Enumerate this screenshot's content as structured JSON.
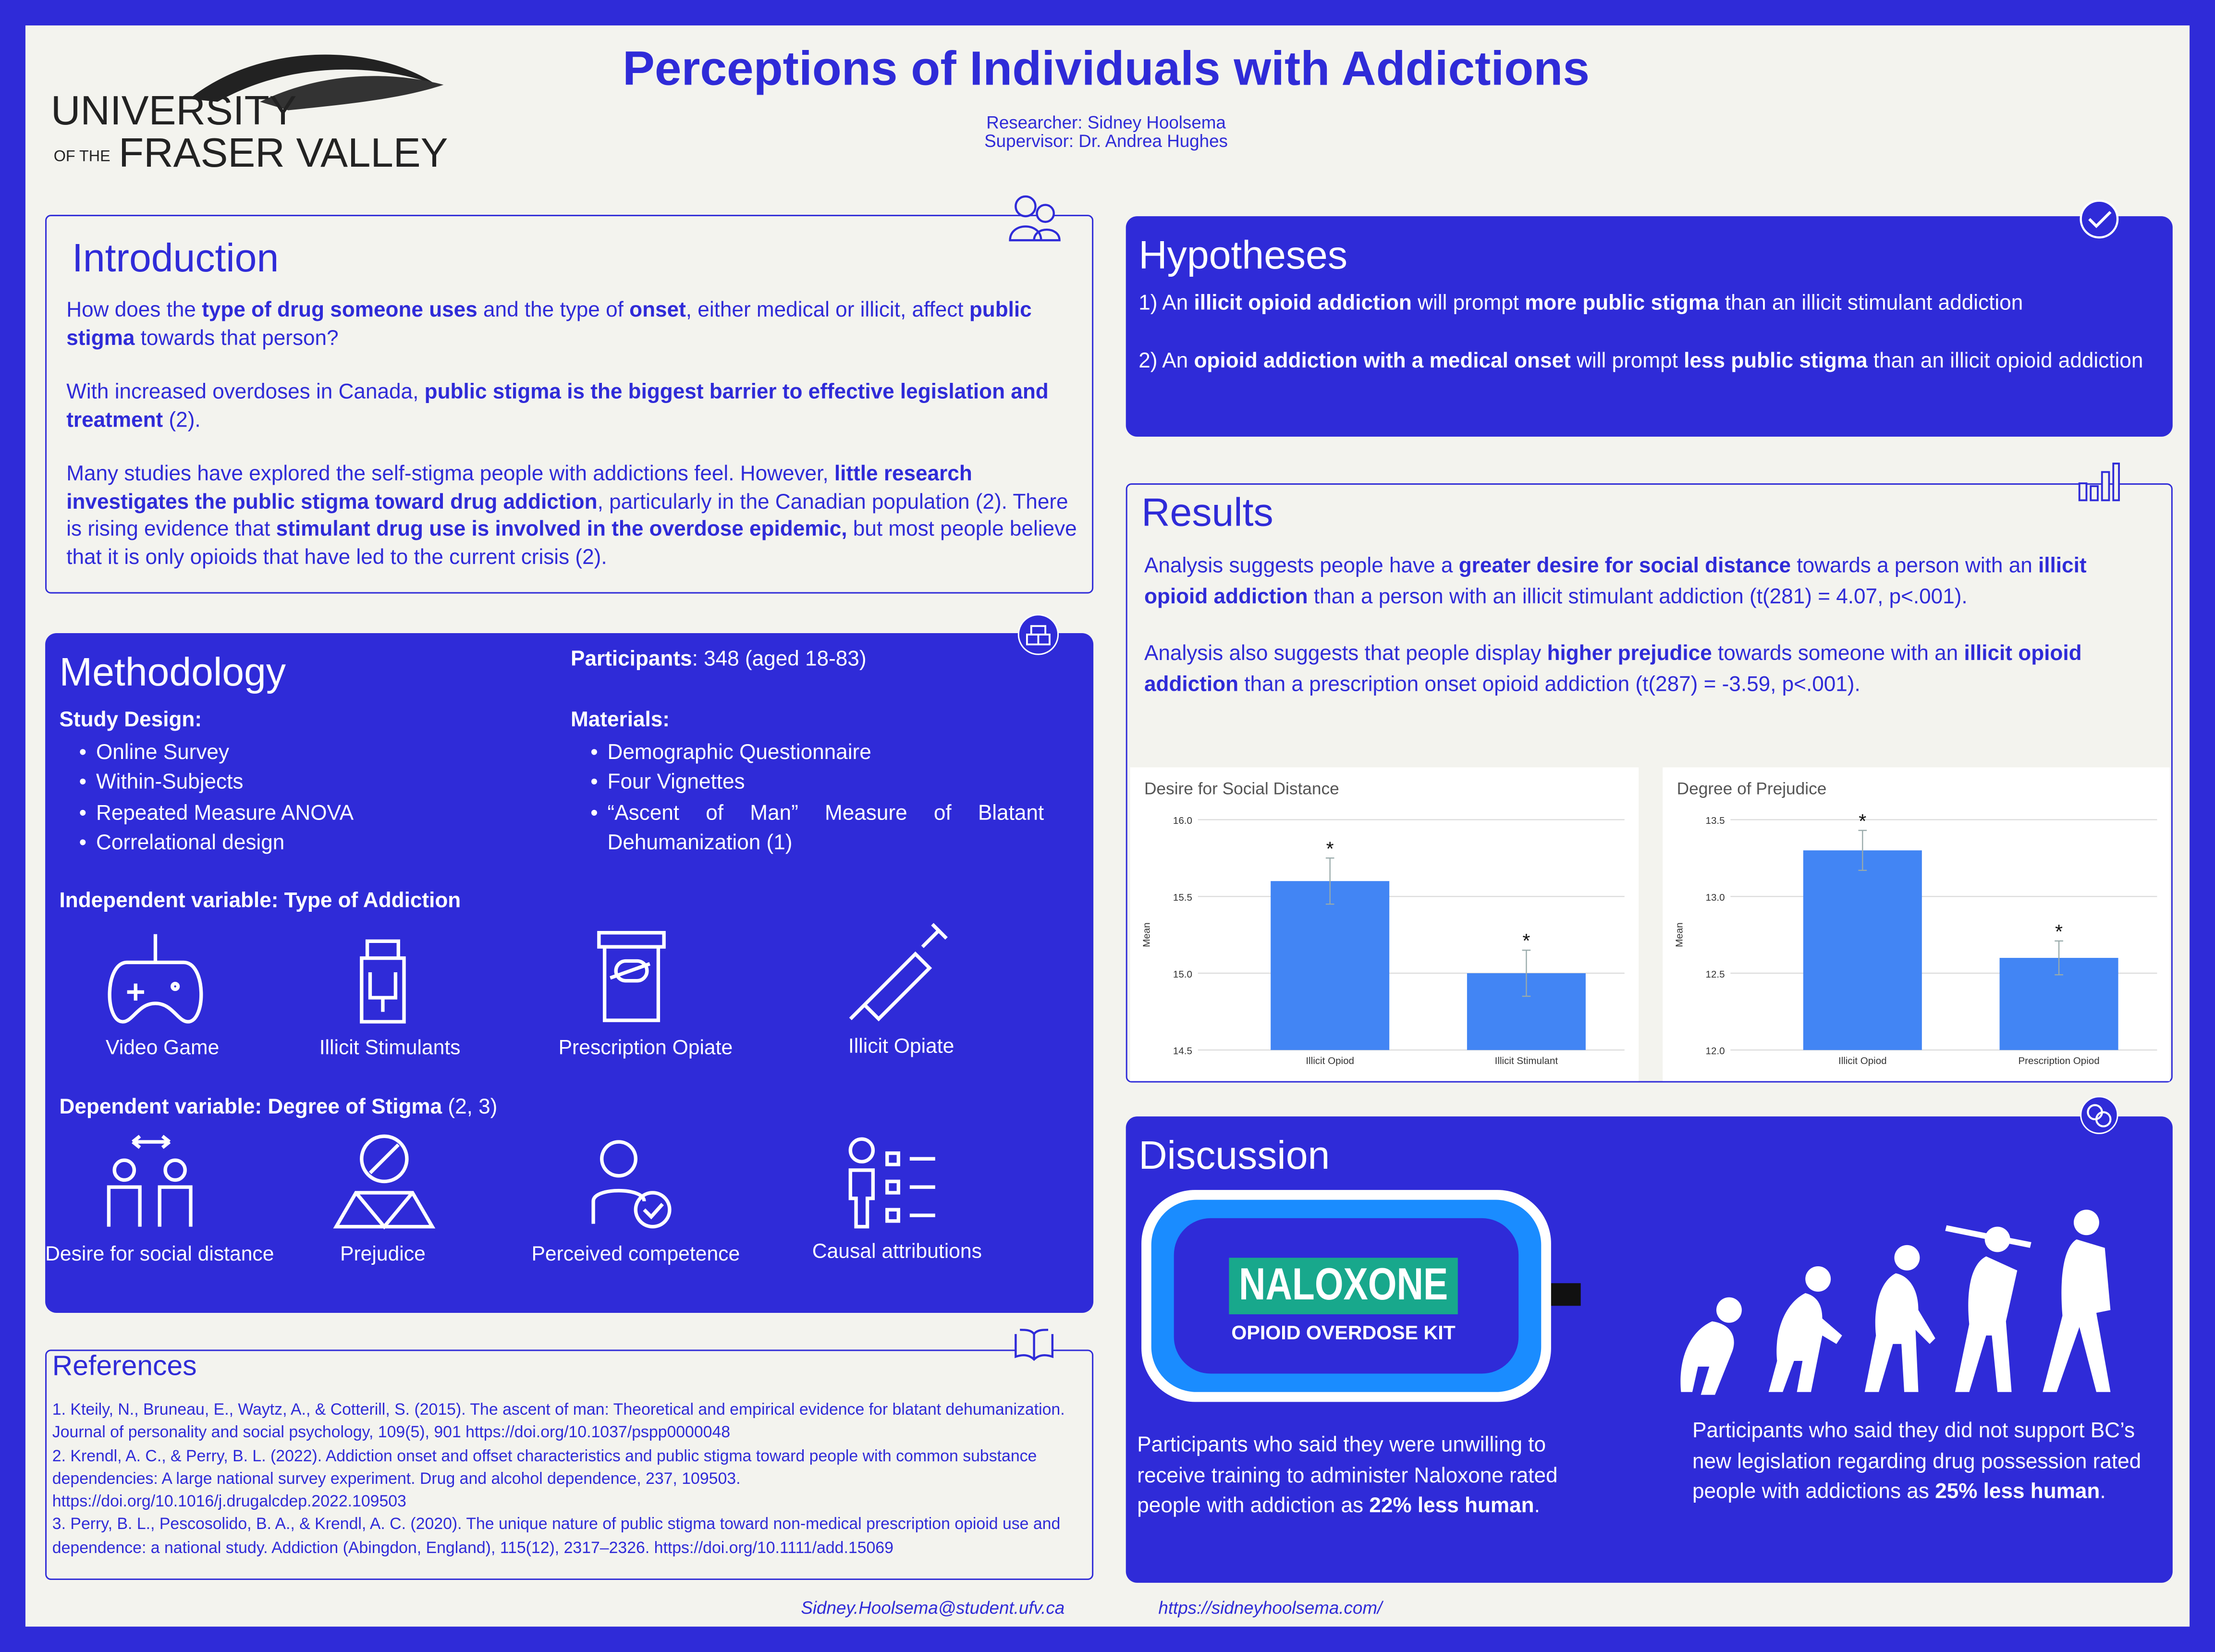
{
  "header": {
    "logo": [
      "UNIVERSITY",
      "OF THE",
      "FRASER VALLEY"
    ],
    "title": "Perceptions of Individuals with Addictions",
    "researcher": "Researcher: Sidney Hoolsema",
    "supervisor": "Supervisor: Dr. Andrea Hughes"
  },
  "introduction": {
    "title": "Introduction",
    "paragraphs": [
      [
        "How does the ",
        "type of drug someone uses",
        " and the type of ",
        "onset",
        ", either medical or illicit, affect ",
        "public stigma",
        " towards that person?"
      ],
      [
        "With increased overdoses in Canada, ",
        "public stigma is the biggest barrier to effective legislation and treatment",
        " (2)."
      ],
      [
        "Many studies have explored the self-stigma people with addictions feel. However, ",
        "little research investigates the public stigma toward drug addiction",
        ", particularly in the Canadian population (2). There is rising evidence that ",
        "stimulant drug use is involved in the overdose epidemic,",
        " but most people believe that it is only opioids that have led to the current crisis (2)."
      ]
    ]
  },
  "methodology": {
    "title": "Methodology",
    "participants": {
      "label": "Participants",
      "text": ": 348 (aged 18-83)"
    },
    "study_design": {
      "heading": "Study Design:",
      "items": [
        "Online Survey",
        "Within-Subjects",
        "Repeated Measure ANOVA",
        "Correlational design"
      ]
    },
    "materials": {
      "heading": "Materials:",
      "items": [
        "Demographic Questionnaire",
        "Four Vignettes",
        "“Ascent of Man” Measure of Blatant Dehumanization (1)"
      ]
    },
    "independent": {
      "heading": "Independent variable: Type of Addiction",
      "items": [
        "Video Game",
        "Illicit Stimulants",
        "Prescription Opiate",
        "Illicit Opiate"
      ]
    },
    "dependent": {
      "heading": "Dependent variable: Degree of Stigma",
      "cite": " (2, 3)",
      "items": [
        "Desire for social distance",
        "Prejudice",
        "Perceived competence",
        "Causal attributions"
      ]
    }
  },
  "references": {
    "title": "References",
    "items": [
      "1. Kteily, N., Bruneau, E., Waytz, A., & Cotterill, S. (2015). The ascent of man: Theoretical and empirical evidence for blatant dehumanization. Journal of personality and social psychology, 109(5), 901 https://doi.org/10.1037/pspp0000048",
      "2. Krendl, A. C., & Perry, B. L. (2022). Addiction onset and offset characteristics and public stigma toward people with common substance dependencies: A large national survey experiment. Drug and alcohol dependence, 237, 109503. https://doi.org/10.1016/j.drugalcdep.2022.109503",
      "3. Perry, B. L., Pescosolido, B. A., & Krendl, A. C. (2020). The unique nature of public stigma toward non-medical prescription opioid use and dependence: a national study. Addiction (Abingdon, England), 115(12), 2317–2326. https://doi.org/10.1111/add.15069"
    ]
  },
  "hypotheses": {
    "title": "Hypotheses",
    "items": [
      [
        "1) An ",
        "illicit opioid addiction",
        " will prompt ",
        "more public stigma",
        " than an illicit stimulant addiction"
      ],
      [
        "2) An ",
        "opioid addiction with a medical onset",
        " will prompt ",
        "less public stigma",
        " than an illicit opioid addiction"
      ]
    ]
  },
  "results": {
    "title": "Results",
    "paragraphs": [
      [
        "Analysis suggests people have a ",
        "greater desire for social distance",
        " towards a person with an ",
        "illicit opioid addiction",
        " than a person with an illicit stimulant addiction (t(281) = 4.07, p<.001)."
      ],
      [
        "Analysis also suggests that people display ",
        "higher prejudice",
        " towards someone with an ",
        "illicit opioid",
        " ",
        "addiction",
        " than a prescription onset opioid addiction (t(287) = -3.59, p<.001)."
      ]
    ],
    "charts": [
      {
        "type": "bar",
        "title": "Desire for Social Distance",
        "y_label": "Mean",
        "categories": [
          "Illicit Opiod",
          "Illicit Stimulant"
        ],
        "values": [
          15.6,
          15.0
        ],
        "errors": [
          0.15,
          0.15
        ],
        "annotations": [
          "*",
          "*"
        ],
        "color": "#4285f4",
        "ylim": [
          14.5,
          16.0
        ],
        "yticks": [
          {
            "value": 14.5,
            "label": "14.5"
          },
          {
            "value": 15.0,
            "label": "15.0"
          },
          {
            "value": 15.5,
            "label": "15.5"
          },
          {
            "value": 16.0,
            "label": "16.0"
          }
        ],
        "grid": true
      },
      {
        "type": "bar",
        "title": "Degree of Prejudice",
        "y_label": "Mean",
        "categories": [
          "Illicit Opiod",
          "Prescription Opiod"
        ],
        "values": [
          13.3,
          12.6
        ],
        "errors": [
          0.13,
          0.11
        ],
        "annotations": [
          "*",
          "*"
        ],
        "color": "#4285f4",
        "ylim": [
          12.0,
          13.5
        ],
        "yticks": [
          {
            "value": 12.0,
            "label": "12.0"
          },
          {
            "value": 12.5,
            "label": "12.5"
          },
          {
            "value": 13.0,
            "label": "13.0"
          },
          {
            "value": 13.5,
            "label": "13.5"
          }
        ],
        "grid": true
      }
    ]
  },
  "discussion": {
    "title": "Discussion",
    "kit": {
      "name": "NALOXONE",
      "subtitle": "OPIOID OVERDOSE KIT"
    },
    "findings": [
      [
        "Participants who said they were unwilling to receive training to administer Naloxone rated people with addiction as ",
        "22% less human",
        "."
      ],
      [
        "Participants who said they did not support BC’s new legislation regarding drug possession rated people with addictions as ",
        "25% less human",
        "."
      ]
    ]
  },
  "footer": {
    "email": "Sidney.Hoolsema@student.ufv.ca",
    "website": "https://sidneyhoolsema.com/"
  }
}
